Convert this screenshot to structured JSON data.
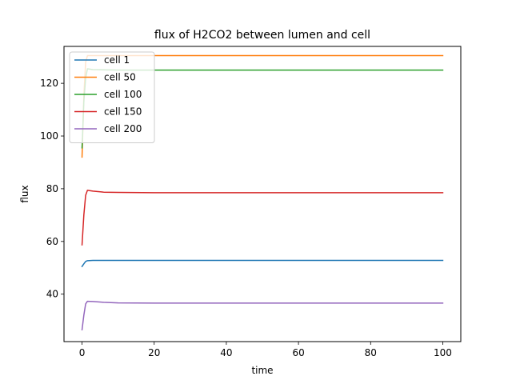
{
  "chart_data": {
    "type": "line",
    "title": "flux of H2CO2 between lumen and cell",
    "xlabel": "time",
    "ylabel": "flux",
    "xlim": [
      -5,
      105
    ],
    "ylim": [
      22,
      134
    ],
    "xticks": [
      0,
      20,
      40,
      60,
      80,
      100
    ],
    "yticks": [
      40,
      60,
      80,
      100,
      120
    ],
    "grid": false,
    "legend_position": "top-left",
    "series": [
      {
        "name": "cell 1",
        "color": "#1f77b4",
        "points": [
          [
            0,
            50.5
          ],
          [
            0.5,
            51.5
          ],
          [
            1,
            52.4
          ],
          [
            1.5,
            52.7
          ],
          [
            3,
            52.8
          ],
          [
            10,
            52.8
          ],
          [
            100,
            52.8
          ]
        ]
      },
      {
        "name": "cell 50",
        "color": "#ff7f0e",
        "points": [
          [
            0,
            92
          ],
          [
            0.5,
            115
          ],
          [
            1,
            128
          ],
          [
            1.5,
            130.5
          ],
          [
            3,
            130.5
          ],
          [
            100,
            130.5
          ]
        ]
      },
      {
        "name": "cell 100",
        "color": "#2ca02c",
        "points": [
          [
            0,
            95.5
          ],
          [
            0.5,
            113
          ],
          [
            1,
            122
          ],
          [
            1.5,
            125.5
          ],
          [
            3,
            125.2
          ],
          [
            10,
            125
          ],
          [
            100,
            125
          ]
        ]
      },
      {
        "name": "cell 150",
        "color": "#d62728",
        "points": [
          [
            0,
            58.7
          ],
          [
            0.5,
            70
          ],
          [
            1,
            77.5
          ],
          [
            1.5,
            79.4
          ],
          [
            3,
            79.1
          ],
          [
            6,
            78.7
          ],
          [
            10,
            78.6
          ],
          [
            20,
            78.5
          ],
          [
            100,
            78.5
          ]
        ]
      },
      {
        "name": "cell 200",
        "color": "#9467bd",
        "points": [
          [
            0,
            26.5
          ],
          [
            0.5,
            32
          ],
          [
            1,
            36.3
          ],
          [
            1.5,
            37.3
          ],
          [
            3,
            37.2
          ],
          [
            6,
            36.9
          ],
          [
            10,
            36.7
          ],
          [
            20,
            36.6
          ],
          [
            100,
            36.6
          ]
        ]
      }
    ]
  }
}
